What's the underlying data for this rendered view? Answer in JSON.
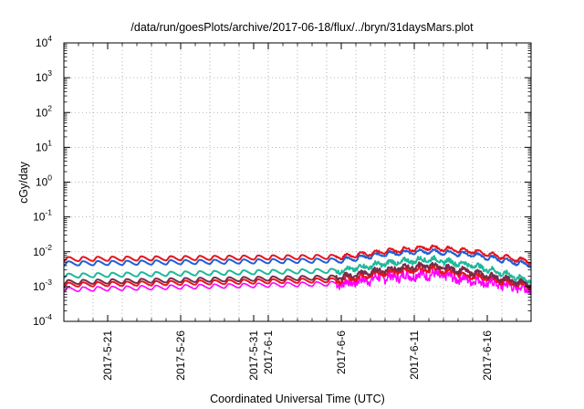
{
  "chart_data": {
    "type": "line",
    "title": "/data/run/goesPlots/archive/2017-06-18/flux/../bryn/31daysMars.plot",
    "xlabel": "Coordinated Universal Time (UTC)",
    "ylabel": "cGy/day",
    "yscale": "log",
    "ylim": [
      0.0001,
      10000
    ],
    "xlim": [
      "2017-05-18",
      "2017-06-19"
    ],
    "grid": true,
    "y_ticks": [
      {
        "base": "10",
        "exp": "-4"
      },
      {
        "base": "10",
        "exp": "-3"
      },
      {
        "base": "10",
        "exp": "-2"
      },
      {
        "base": "10",
        "exp": "-1"
      },
      {
        "base": "10",
        "exp": "0"
      },
      {
        "base": "10",
        "exp": "1"
      },
      {
        "base": "10",
        "exp": "2"
      },
      {
        "base": "10",
        "exp": "3"
      },
      {
        "base": "10",
        "exp": "4"
      }
    ],
    "x_ticks": [
      "2017-5-21",
      "2017-5-26",
      "2017-5-31",
      "2017-6-1",
      "2017-6-6",
      "2017-6-11",
      "2017-6-16"
    ],
    "series": [
      {
        "color": "#e8141c",
        "x": [
          "2017-05-18",
          "2017-06-06",
          "2017-06-09",
          "2017-06-12",
          "2017-06-15",
          "2017-06-19"
        ],
        "y": [
          0.006,
          0.007,
          0.01,
          0.013,
          0.01,
          0.005
        ]
      },
      {
        "color": "#1f5fd6",
        "x": [
          "2017-05-18",
          "2017-06-06",
          "2017-06-09",
          "2017-06-12",
          "2017-06-15",
          "2017-06-19"
        ],
        "y": [
          0.0045,
          0.0055,
          0.0085,
          0.01,
          0.008,
          0.004
        ]
      },
      {
        "color": "#1fb89a",
        "x": [
          "2017-05-18",
          "2017-06-06",
          "2017-06-09",
          "2017-06-12",
          "2017-06-15",
          "2017-06-19"
        ],
        "y": [
          0.002,
          0.0028,
          0.0045,
          0.006,
          0.004,
          0.0014
        ]
      },
      {
        "color": "#7a2a4a",
        "x": [
          "2017-05-18",
          "2017-06-06",
          "2017-06-09",
          "2017-06-12",
          "2017-06-15",
          "2017-06-19"
        ],
        "y": [
          0.0013,
          0.0018,
          0.003,
          0.004,
          0.0025,
          0.0011
        ]
      },
      {
        "color": "#e8141c",
        "x": [
          "2017-05-18",
          "2017-06-06",
          "2017-06-09",
          "2017-06-12",
          "2017-06-15",
          "2017-06-19"
        ],
        "y": [
          0.0011,
          0.0015,
          0.0025,
          0.0032,
          0.002,
          0.001
        ]
      },
      {
        "color": "#ff00ff",
        "x": [
          "2017-05-18",
          "2017-06-06",
          "2017-06-09",
          "2017-06-12",
          "2017-06-15",
          "2017-06-19"
        ],
        "y": [
          0.0008,
          0.0012,
          0.0018,
          0.0022,
          0.0015,
          0.0008
        ]
      }
    ]
  }
}
